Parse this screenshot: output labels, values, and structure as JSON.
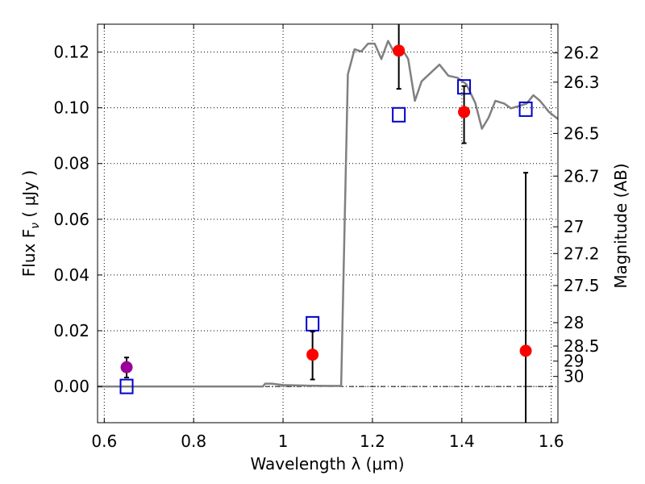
{
  "chart_data": {
    "type": "scatter",
    "xlabel": "Wavelength  λ (μm)",
    "ylabel": "Flux  F",
    "ylabel_subscript": "ν",
    "ylabel_unit": "  ( μJy )",
    "y2label": "Magnitude (AB)",
    "xlim": [
      0.585,
      1.615
    ],
    "ylim": [
      -0.013,
      0.13
    ],
    "grid": true,
    "x_ticks": [
      0.6,
      0.8,
      1.0,
      1.2,
      1.4,
      1.6
    ],
    "x_tick_labels": [
      "0.6",
      "0.8",
      "1",
      "1.2",
      "1.4",
      "1.6"
    ],
    "y_ticks": [
      0.0,
      0.02,
      0.04,
      0.06,
      0.08,
      0.1,
      0.12
    ],
    "y_tick_labels": [
      "0.00",
      "0.02",
      "0.04",
      "0.06",
      "0.08",
      "0.10",
      "0.12"
    ],
    "y2_ticks": [
      {
        "label": "26.2",
        "flux": 0.1197
      },
      {
        "label": "26.3",
        "flux": 0.1092
      },
      {
        "label": "26.5",
        "flux": 0.0908
      },
      {
        "label": "26.7",
        "flux": 0.0755
      },
      {
        "label": "27",
        "flux": 0.0573
      },
      {
        "label": "27.2",
        "flux": 0.0477
      },
      {
        "label": "27.5",
        "flux": 0.0362
      },
      {
        "label": "28",
        "flux": 0.0229
      },
      {
        "label": "28.5",
        "flux": 0.0145
      },
      {
        "label": "29",
        "flux": 0.0091
      },
      {
        "label": "30",
        "flux": 0.0036
      }
    ],
    "series": [
      {
        "marker": "line",
        "color": "#808080",
        "x": [
          0.585,
          0.955,
          0.96,
          0.975,
          1.0,
          1.05,
          1.1,
          1.13,
          1.145,
          1.16,
          1.175,
          1.19,
          1.205,
          1.22,
          1.235,
          1.25,
          1.265,
          1.28,
          1.295,
          1.31,
          1.33,
          1.35,
          1.37,
          1.39,
          1.41,
          1.43,
          1.445,
          1.46,
          1.475,
          1.495,
          1.51,
          1.525,
          1.545,
          1.56,
          1.575,
          1.595,
          1.615
        ],
        "y": [
          0.0,
          0.0,
          0.001,
          0.001,
          0.0005,
          0.0003,
          0.0002,
          0.0002,
          0.112,
          0.121,
          0.1202,
          0.123,
          0.123,
          0.1175,
          0.124,
          0.1195,
          0.1215,
          0.1175,
          0.1025,
          0.1095,
          0.1125,
          0.1155,
          0.1115,
          0.1108,
          0.1085,
          0.1018,
          0.0925,
          0.0965,
          0.1025,
          0.1015,
          0.0998,
          0.1005,
          0.1015,
          0.1045,
          0.1025,
          0.0985,
          0.096
        ]
      },
      {
        "marker": "open-square",
        "color": "#0000cc",
        "x": [
          0.65,
          1.066,
          1.259,
          1.405,
          1.543
        ],
        "y": [
          0.0,
          0.0225,
          0.0975,
          0.1075,
          0.0995
        ]
      },
      {
        "marker": "filled-circle",
        "color": "#ff0000",
        "x": [
          1.066,
          1.259,
          1.405,
          1.543
        ],
        "y": [
          0.0114,
          0.1205,
          0.0985,
          0.0128
        ],
        "yerr_low": [
          0.0025,
          0.1068,
          0.0873,
          -0.013
        ],
        "yerr_high": [
          0.0197,
          0.13,
          0.1078,
          0.0767
        ]
      },
      {
        "marker": "filled-circle",
        "color": "#990099",
        "x": [
          0.65
        ],
        "y": [
          0.0069
        ],
        "yerr_low": [
          0.0032
        ],
        "yerr_high": [
          0.0104
        ]
      }
    ]
  }
}
